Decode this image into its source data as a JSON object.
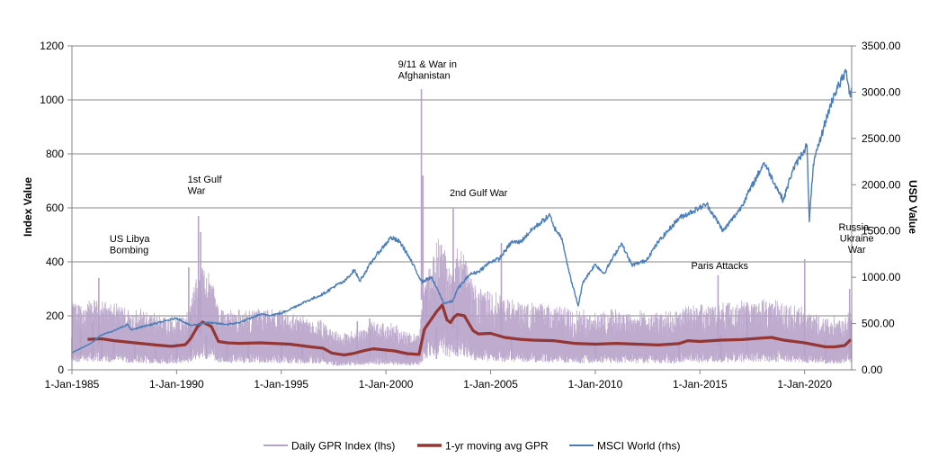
{
  "chart_data": {
    "type": "line",
    "title": "",
    "xlabel": "",
    "ylabel_left": "Index Value",
    "ylabel_right": "USD Value",
    "xlim": [
      "1-Jan-1985",
      "2022-04-01"
    ],
    "ylim_left": [
      0,
      1200
    ],
    "ylim_right": [
      0,
      3500
    ],
    "grid": "horizontal",
    "legend_position": "bottom",
    "x_ticks": [
      "1-Jan-1985",
      "1-Jan-1990",
      "1-Jan-1995",
      "1-Jan-2000",
      "1-Jan-2005",
      "1-Jan-2010",
      "1-Jan-2015",
      "1-Jan-2020"
    ],
    "y_ticks_left": [
      "0",
      "200",
      "400",
      "600",
      "800",
      "1000",
      "1200"
    ],
    "y_ticks_right": [
      "0.00",
      "500.00",
      "1000.00",
      "1500.00",
      "2000.00",
      "2500.00",
      "3000.00",
      "3500.00"
    ],
    "series": [
      {
        "name": "Daily GPR Index (lhs)",
        "axis": "left",
        "color": "#b7a2c9",
        "points": [
          [
            "1985-01-01",
            120
          ],
          [
            "1985-06-01",
            150
          ],
          [
            "1986-01-01",
            180
          ],
          [
            "1986-04-15",
            340
          ],
          [
            "1986-06-01",
            130
          ],
          [
            "1987-01-01",
            110
          ],
          [
            "1988-01-01",
            100
          ],
          [
            "1989-01-01",
            95
          ],
          [
            "1990-01-01",
            100
          ],
          [
            "1990-08-01",
            380
          ],
          [
            "1990-09-01",
            200
          ],
          [
            "1991-01-17",
            570
          ],
          [
            "1991-02-24",
            510
          ],
          [
            "1991-06-01",
            130
          ],
          [
            "1992-06-01",
            100
          ],
          [
            "1993-06-01",
            110
          ],
          [
            "1995-01-01",
            100
          ],
          [
            "1996-01-01",
            90
          ],
          [
            "1997-01-01",
            80
          ],
          [
            "1998-08-20",
            180
          ],
          [
            "1999-03-24",
            190
          ],
          [
            "2000-01-01",
            80
          ],
          [
            "2001-01-01",
            70
          ],
          [
            "2001-09-11",
            1040
          ],
          [
            "2001-10-08",
            720
          ],
          [
            "2001-12-01",
            300
          ],
          [
            "2002-06-01",
            160
          ],
          [
            "2003-03-20",
            600
          ],
          [
            "2003-06-01",
            200
          ],
          [
            "2005-07-07",
            470
          ],
          [
            "2006-01-01",
            120
          ],
          [
            "2010-01-01",
            100
          ],
          [
            "2014-01-01",
            110
          ],
          [
            "2015-11-13",
            350
          ],
          [
            "2016-01-01",
            130
          ],
          [
            "2017-04-01",
            250
          ],
          [
            "2019-12-31",
            200
          ],
          [
            "2020-01-03",
            410
          ],
          [
            "2021-01-01",
            110
          ],
          [
            "2022-02-24",
            300
          ],
          [
            "2022-03-15",
            180
          ]
        ]
      },
      {
        "name": "1-yr moving avg GPR",
        "axis": "left",
        "color": "#943634",
        "points": [
          [
            "1985-10-01",
            113
          ],
          [
            "1986-06-01",
            115
          ],
          [
            "1987-01-01",
            108
          ],
          [
            "1988-01-01",
            100
          ],
          [
            "1989-01-01",
            92
          ],
          [
            "1989-10-01",
            87
          ],
          [
            "1990-06-01",
            93
          ],
          [
            "1990-09-01",
            115
          ],
          [
            "1991-01-01",
            160
          ],
          [
            "1991-04-01",
            177
          ],
          [
            "1991-09-01",
            160
          ],
          [
            "1992-01-01",
            105
          ],
          [
            "1992-06-01",
            100
          ],
          [
            "1993-01-01",
            98
          ],
          [
            "1994-01-01",
            100
          ],
          [
            "1995-06-01",
            95
          ],
          [
            "1996-06-01",
            85
          ],
          [
            "1997-01-01",
            80
          ],
          [
            "1997-06-01",
            62
          ],
          [
            "1998-01-01",
            55
          ],
          [
            "1998-06-01",
            60
          ],
          [
            "1999-01-01",
            72
          ],
          [
            "1999-06-01",
            78
          ],
          [
            "2000-06-01",
            70
          ],
          [
            "2001-01-01",
            60
          ],
          [
            "2001-08-01",
            57
          ],
          [
            "2001-11-01",
            150
          ],
          [
            "2002-06-01",
            215
          ],
          [
            "2002-09-11",
            240
          ],
          [
            "2002-12-01",
            185
          ],
          [
            "2003-02-01",
            175
          ],
          [
            "2003-04-01",
            195
          ],
          [
            "2003-06-01",
            205
          ],
          [
            "2003-10-01",
            200
          ],
          [
            "2004-03-01",
            145
          ],
          [
            "2004-06-01",
            133
          ],
          [
            "2005-01-01",
            135
          ],
          [
            "2005-09-01",
            120
          ],
          [
            "2006-06-01",
            113
          ],
          [
            "2007-01-01",
            110
          ],
          [
            "2008-01-01",
            108
          ],
          [
            "2009-01-01",
            98
          ],
          [
            "2010-01-01",
            95
          ],
          [
            "2011-01-01",
            98
          ],
          [
            "2012-01-01",
            95
          ],
          [
            "2013-01-01",
            92
          ],
          [
            "2014-01-01",
            97
          ],
          [
            "2014-06-01",
            108
          ],
          [
            "2015-01-01",
            105
          ],
          [
            "2016-01-01",
            110
          ],
          [
            "2017-01-01",
            112
          ],
          [
            "2018-01-01",
            118
          ],
          [
            "2018-06-01",
            120
          ],
          [
            "2019-01-01",
            110
          ],
          [
            "2020-01-01",
            100
          ],
          [
            "2021-01-01",
            85
          ],
          [
            "2021-06-01",
            85
          ],
          [
            "2021-12-01",
            90
          ],
          [
            "2022-03-15",
            112
          ]
        ]
      },
      {
        "name": "MSCI World (rhs)",
        "axis": "right",
        "color": "#4a7ebb",
        "points": [
          [
            "1985-01-01",
            185
          ],
          [
            "1985-06-01",
            230
          ],
          [
            "1986-01-01",
            300
          ],
          [
            "1986-06-01",
            380
          ],
          [
            "1987-01-01",
            420
          ],
          [
            "1987-09-01",
            490
          ],
          [
            "1987-11-01",
            430
          ],
          [
            "1988-06-01",
            470
          ],
          [
            "1989-01-01",
            500
          ],
          [
            "1989-12-29",
            560
          ],
          [
            "1990-09-01",
            480
          ],
          [
            "1991-01-01",
            490
          ],
          [
            "1991-06-01",
            510
          ],
          [
            "1992-01-01",
            500
          ],
          [
            "1992-06-01",
            490
          ],
          [
            "1993-01-01",
            510
          ],
          [
            "1994-01-01",
            600
          ],
          [
            "1994-06-01",
            590
          ],
          [
            "1995-01-01",
            610
          ],
          [
            "1996-01-01",
            720
          ],
          [
            "1997-01-01",
            820
          ],
          [
            "1997-09-01",
            920
          ],
          [
            "1998-01-01",
            950
          ],
          [
            "1998-07-01",
            1080
          ],
          [
            "1998-10-01",
            960
          ],
          [
            "1999-06-01",
            1200
          ],
          [
            "2000-03-27",
            1430
          ],
          [
            "2000-09-01",
            1380
          ],
          [
            "2001-01-01",
            1260
          ],
          [
            "2001-09-21",
            950
          ],
          [
            "2002-03-01",
            1000
          ],
          [
            "2002-07-01",
            850
          ],
          [
            "2002-10-09",
            720
          ],
          [
            "2003-03-11",
            740
          ],
          [
            "2003-06-01",
            870
          ],
          [
            "2004-01-01",
            1030
          ],
          [
            "2004-06-01",
            1060
          ],
          [
            "2005-01-01",
            1170
          ],
          [
            "2005-06-01",
            1200
          ],
          [
            "2006-01-01",
            1380
          ],
          [
            "2006-06-01",
            1380
          ],
          [
            "2007-01-01",
            1520
          ],
          [
            "2007-10-31",
            1670
          ],
          [
            "2008-01-01",
            1550
          ],
          [
            "2008-06-01",
            1420
          ],
          [
            "2008-10-01",
            1050
          ],
          [
            "2009-03-09",
            690
          ],
          [
            "2009-06-01",
            950
          ],
          [
            "2010-01-01",
            1140
          ],
          [
            "2010-06-01",
            1040
          ],
          [
            "2011-04-01",
            1370
          ],
          [
            "2011-10-01",
            1130
          ],
          [
            "2012-06-01",
            1180
          ],
          [
            "2013-01-01",
            1380
          ],
          [
            "2014-01-01",
            1640
          ],
          [
            "2015-05-01",
            1790
          ],
          [
            "2016-02-11",
            1500
          ],
          [
            "2016-12-01",
            1740
          ],
          [
            "2018-01-26",
            2240
          ],
          [
            "2018-12-24",
            1830
          ],
          [
            "2019-06-01",
            2150
          ],
          [
            "2020-02-12",
            2430
          ],
          [
            "2020-03-23",
            1600
          ],
          [
            "2020-06-01",
            2220
          ],
          [
            "2021-01-01",
            2690
          ],
          [
            "2021-06-01",
            2980
          ],
          [
            "2021-12-31",
            3230
          ],
          [
            "2022-03-08",
            2950
          ],
          [
            "2022-03-31",
            3050
          ]
        ]
      }
    ],
    "annotations": [
      {
        "date": "1986-04-15",
        "value": 340,
        "lines": [
          "US Libya",
          "Bombing"
        ]
      },
      {
        "date": "1991-01-17",
        "value": 570,
        "lines": [
          "1st Gulf",
          "War"
        ]
      },
      {
        "date": "2001-09-11",
        "value": 1040,
        "lines": [
          "9/11 & War in",
          "Afghanistan"
        ]
      },
      {
        "date": "2003-03-20",
        "value": 600,
        "lines": [
          "2nd Gulf War"
        ]
      },
      {
        "date": "2015-11-13",
        "value": 350,
        "lines": [
          "Paris Attacks"
        ]
      },
      {
        "date": "2022-02-24",
        "value": 300,
        "lines": [
          "Russia -",
          "Ukraine",
          "War"
        ]
      }
    ]
  }
}
